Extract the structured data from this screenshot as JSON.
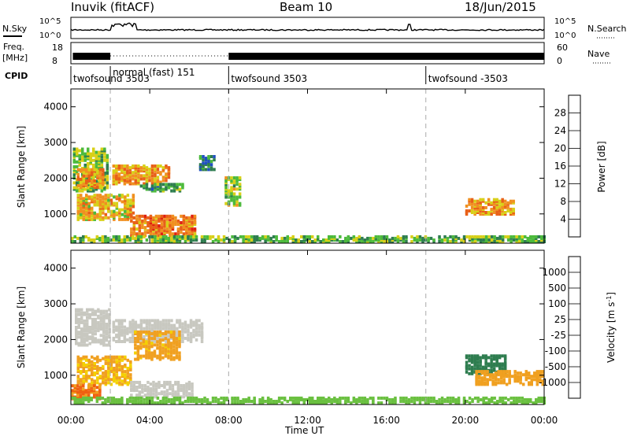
{
  "header": {
    "station": "Inuvik (fitACF)",
    "beam": "Beam 10",
    "date": "18/Jun/2015"
  },
  "noise_panel": {
    "left_label": "N.Sky",
    "right_label": "N.Search",
    "left_ticks": [
      "10^5",
      "10^0"
    ],
    "right_ticks": [
      "10^5",
      "10^0"
    ]
  },
  "freq_panel": {
    "left_label_1": "Freq.",
    "left_label_2": "[MHz]",
    "right_label": "Nave",
    "left_ticks": [
      18,
      8
    ],
    "right_ticks": [
      60,
      0
    ]
  },
  "cpid": {
    "label": "CPID",
    "segments": [
      {
        "start_hour": 0,
        "text": "twofsound 3503"
      },
      {
        "start_hour": 2,
        "text": "normal (fast) 151"
      },
      {
        "start_hour": 8,
        "text": "twofsound 3503"
      },
      {
        "start_hour": 18,
        "text": "twofsound -3503"
      }
    ]
  },
  "time_axis": {
    "label": "Time UT",
    "ticks": [
      "00:00",
      "04:00",
      "08:00",
      "12:00",
      "16:00",
      "20:00",
      "00:00"
    ],
    "start_hour": 0,
    "end_hour": 24,
    "dashed_hours": [
      2,
      8,
      18
    ]
  },
  "chart_data": [
    {
      "type": "heatmap",
      "quantity": "power",
      "ylabel": "Slant Range [km]",
      "ylim": [
        180,
        4500
      ],
      "yticks": [
        1000,
        2000,
        3000,
        4000
      ],
      "colorbar_label": "Power [dB]",
      "colorbar_ticks": [
        28,
        24,
        20,
        16,
        12,
        8,
        4
      ],
      "colors": [
        "#1a1aff",
        "#2050c0",
        "#2e7d4f",
        "#4cba3c",
        "#d8d018",
        "#f09020",
        "#e86018",
        "#e02010"
      ],
      "regions": [
        {
          "t": [
            0.1,
            1.9
          ],
          "r": [
            1600,
            2800
          ],
          "v": 15
        },
        {
          "t": [
            0.3,
            1.6
          ],
          "r": [
            1700,
            2200
          ],
          "v": 22
        },
        {
          "t": [
            2.1,
            5.0
          ],
          "r": [
            1800,
            2300
          ],
          "v": 22
        },
        {
          "t": [
            3.5,
            5.6
          ],
          "r": [
            1600,
            1800
          ],
          "v": 12
        },
        {
          "t": [
            0.3,
            3.2
          ],
          "r": [
            800,
            1500
          ],
          "v": 20
        },
        {
          "t": [
            3.0,
            6.3
          ],
          "r": [
            350,
            900
          ],
          "v": 24
        },
        {
          "t": [
            7.8,
            8.6
          ],
          "r": [
            1200,
            2000
          ],
          "v": 16
        },
        {
          "t": [
            6.5,
            7.2
          ],
          "r": [
            2200,
            2600
          ],
          "v": 10
        },
        {
          "t": [
            20.0,
            22.5
          ],
          "r": [
            950,
            1400
          ],
          "v": 22
        },
        {
          "t": [
            0.0,
            24.0
          ],
          "r": [
            180,
            320
          ],
          "v": 14
        }
      ]
    },
    {
      "type": "heatmap",
      "quantity": "velocity",
      "ylabel": "Slant Range [km]",
      "ylim": [
        180,
        4500
      ],
      "yticks": [
        1000,
        2000,
        3000,
        4000
      ],
      "colorbar_label": "Velocity [m s^-1]",
      "colorbar_ticks": [
        1000,
        500,
        100,
        25,
        -25,
        -100,
        -500,
        -1000
      ],
      "colors": [
        "#e01010",
        "#f06010",
        "#f0a020",
        "#f4d000",
        "#c8c8c0",
        "#6ac040",
        "#2e7d4f",
        "#2060b0",
        "#1a40d0"
      ],
      "regions": [
        {
          "t": [
            0.2,
            2.0
          ],
          "r": [
            1800,
            2800
          ],
          "v": 0
        },
        {
          "t": [
            2.1,
            6.6
          ],
          "r": [
            1900,
            2500
          ],
          "v": 0
        },
        {
          "t": [
            3.2,
            5.5
          ],
          "r": [
            1400,
            2200
          ],
          "v": -150
        },
        {
          "t": [
            0.3,
            3.0
          ],
          "r": [
            700,
            1500
          ],
          "v": -120
        },
        {
          "t": [
            3.0,
            6.2
          ],
          "r": [
            350,
            800
          ],
          "v": 0
        },
        {
          "t": [
            0.0,
            1.5
          ],
          "r": [
            300,
            700
          ],
          "v": -600
        },
        {
          "t": [
            20.0,
            22.0
          ],
          "r": [
            1000,
            1500
          ],
          "v": 300
        },
        {
          "t": [
            20.5,
            24.0
          ],
          "r": [
            700,
            1100
          ],
          "v": -200
        },
        {
          "t": [
            0.0,
            24.0
          ],
          "r": [
            180,
            320
          ],
          "v": 50
        }
      ]
    }
  ]
}
